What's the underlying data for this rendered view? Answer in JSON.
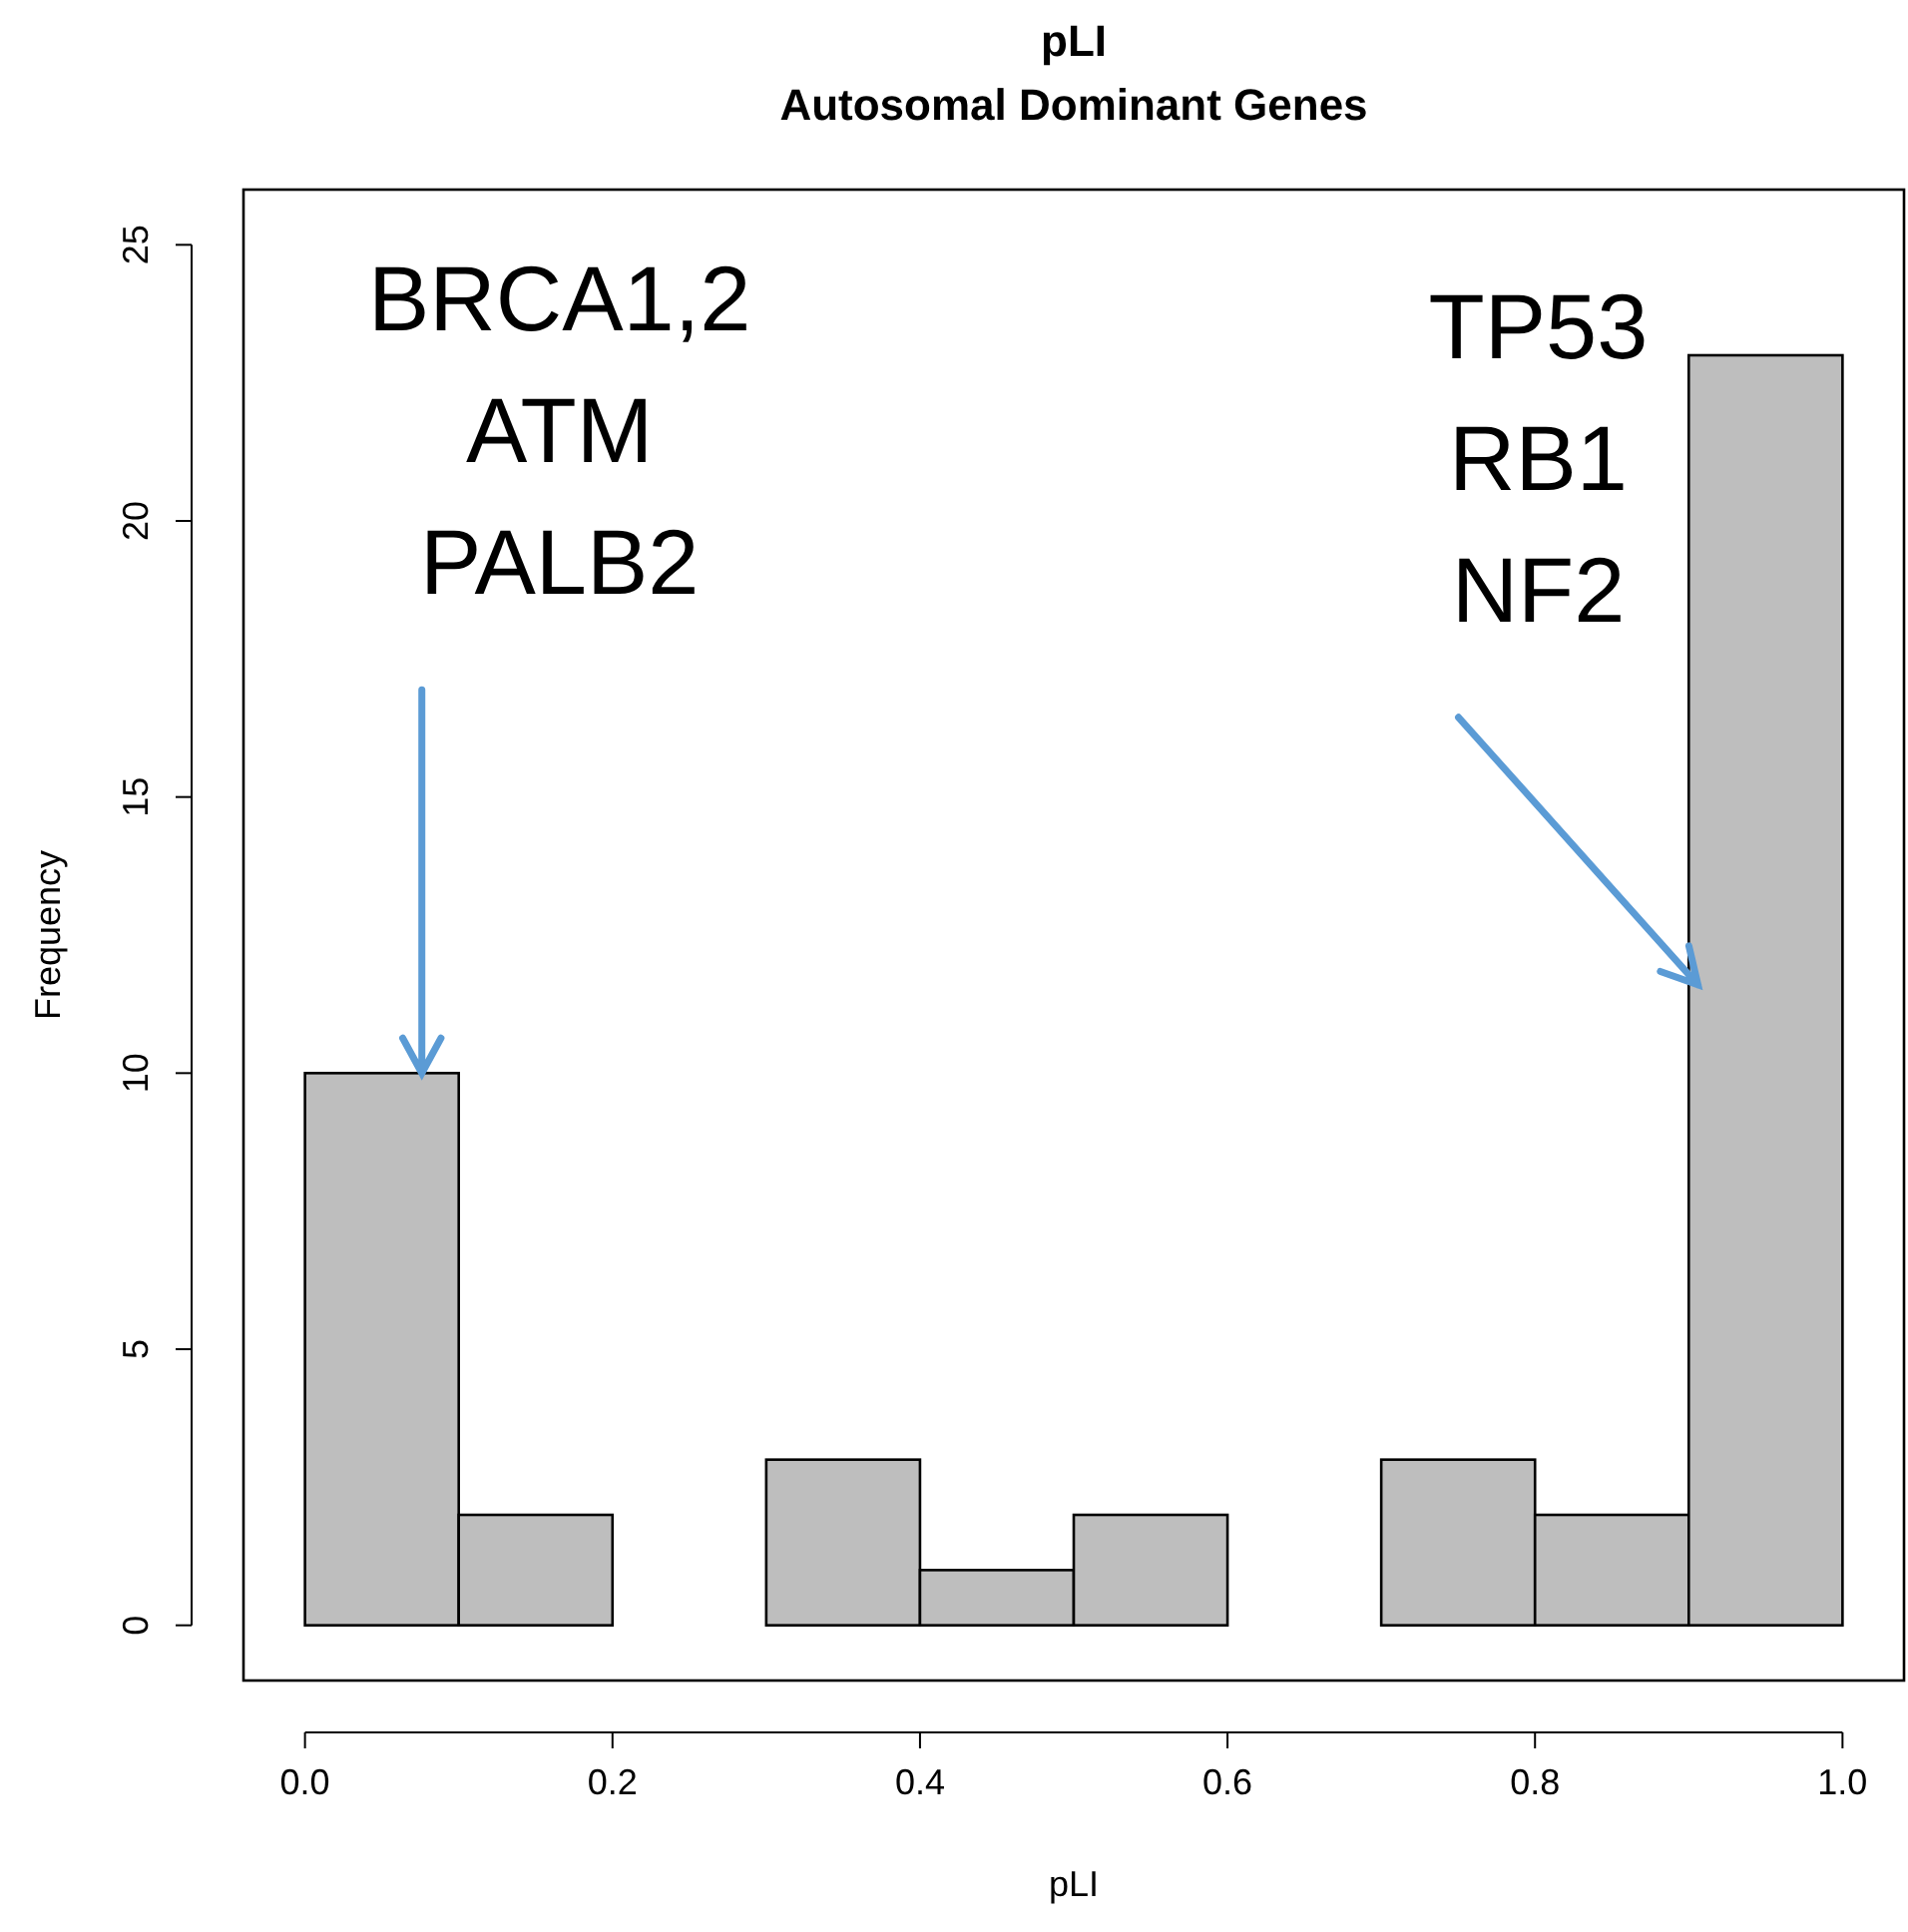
{
  "chart_data": {
    "type": "histogram",
    "title": "pLI",
    "subtitle": "Autosomal Dominant Genes",
    "xlabel": "pLI",
    "ylabel": "Frequency",
    "bins": [
      0,
      0.1,
      0.2,
      0.3,
      0.4,
      0.5,
      0.6,
      0.7,
      0.8,
      0.9,
      1.0
    ],
    "values": [
      10,
      2,
      0,
      3,
      1,
      2,
      0,
      3,
      2,
      23
    ],
    "color": "#bebebe",
    "xlim": [
      -0.04,
      1.04
    ],
    "xticks": [
      {
        "value": 0,
        "label": "0.0"
      },
      {
        "value": 0.2,
        "label": "0.2"
      },
      {
        "value": 0.4,
        "label": "0.4"
      },
      {
        "value": 0.6,
        "label": "0.6"
      },
      {
        "value": 0.8,
        "label": "0.8"
      },
      {
        "value": 1,
        "label": "1.0"
      }
    ],
    "ylim": [
      -1,
      26
    ],
    "yticks": [
      0,
      5,
      10,
      15,
      20,
      25
    ],
    "grid": false,
    "annotations": [
      {
        "text": "BRCA1,2\nATM\nPALB2",
        "x": 0.076,
        "y": 10
      },
      {
        "text": "TP53\nRB1\nNF2",
        "x": 0.906,
        "y": 11.6
      }
    ]
  }
}
